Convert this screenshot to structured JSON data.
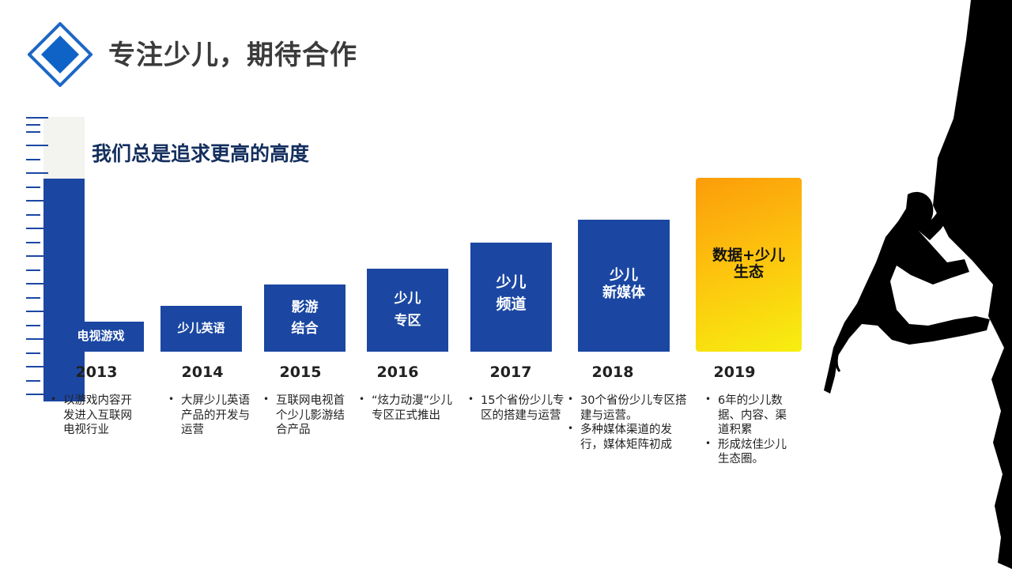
{
  "header": {
    "title": "专注少儿，期待合作"
  },
  "subtitle": "我们总是追求更高的高度",
  "timeline": [
    {
      "year": "2013",
      "label": "电视游戏",
      "bullets": [
        "以游戏内容开发进入互联网电视行业"
      ]
    },
    {
      "year": "2014",
      "label": "少儿英语",
      "bullets": [
        "大屏少儿英语产品的开发与运营"
      ]
    },
    {
      "year": "2015",
      "label": "影游\n结合",
      "bullets": [
        "互联网电视首个少儿影游结合产品"
      ]
    },
    {
      "year": "2016",
      "label": "少儿\n专区",
      "bullets": [
        "“炫力动漫”少儿专区正式推出"
      ]
    },
    {
      "year": "2017",
      "label": "少儿\n频道",
      "bullets": [
        "15个省份少儿专区的搭建与运营"
      ]
    },
    {
      "year": "2018",
      "label": "少儿\n新媒体",
      "bullets": [
        "30个省份少儿专区搭建与运营。",
        "多种媒体渠道的发行，媒体矩阵初成"
      ]
    },
    {
      "year": "2019",
      "label": "数据+少儿\n生态",
      "bullets": [
        "6年的少儿数据、内容、渠道积累",
        "形成炫佳少儿生态圈。"
      ]
    }
  ],
  "colors": {
    "bar_blue": "#1b47a2",
    "gold_start": "#fb9c0a",
    "gold_end": "#f7ef10",
    "title_text": "#3b3b3b",
    "subtitle_text": "#142f5e"
  },
  "icons": {
    "logo": "diamond-logo-icon",
    "decoration": "rock-climber-silhouette"
  }
}
